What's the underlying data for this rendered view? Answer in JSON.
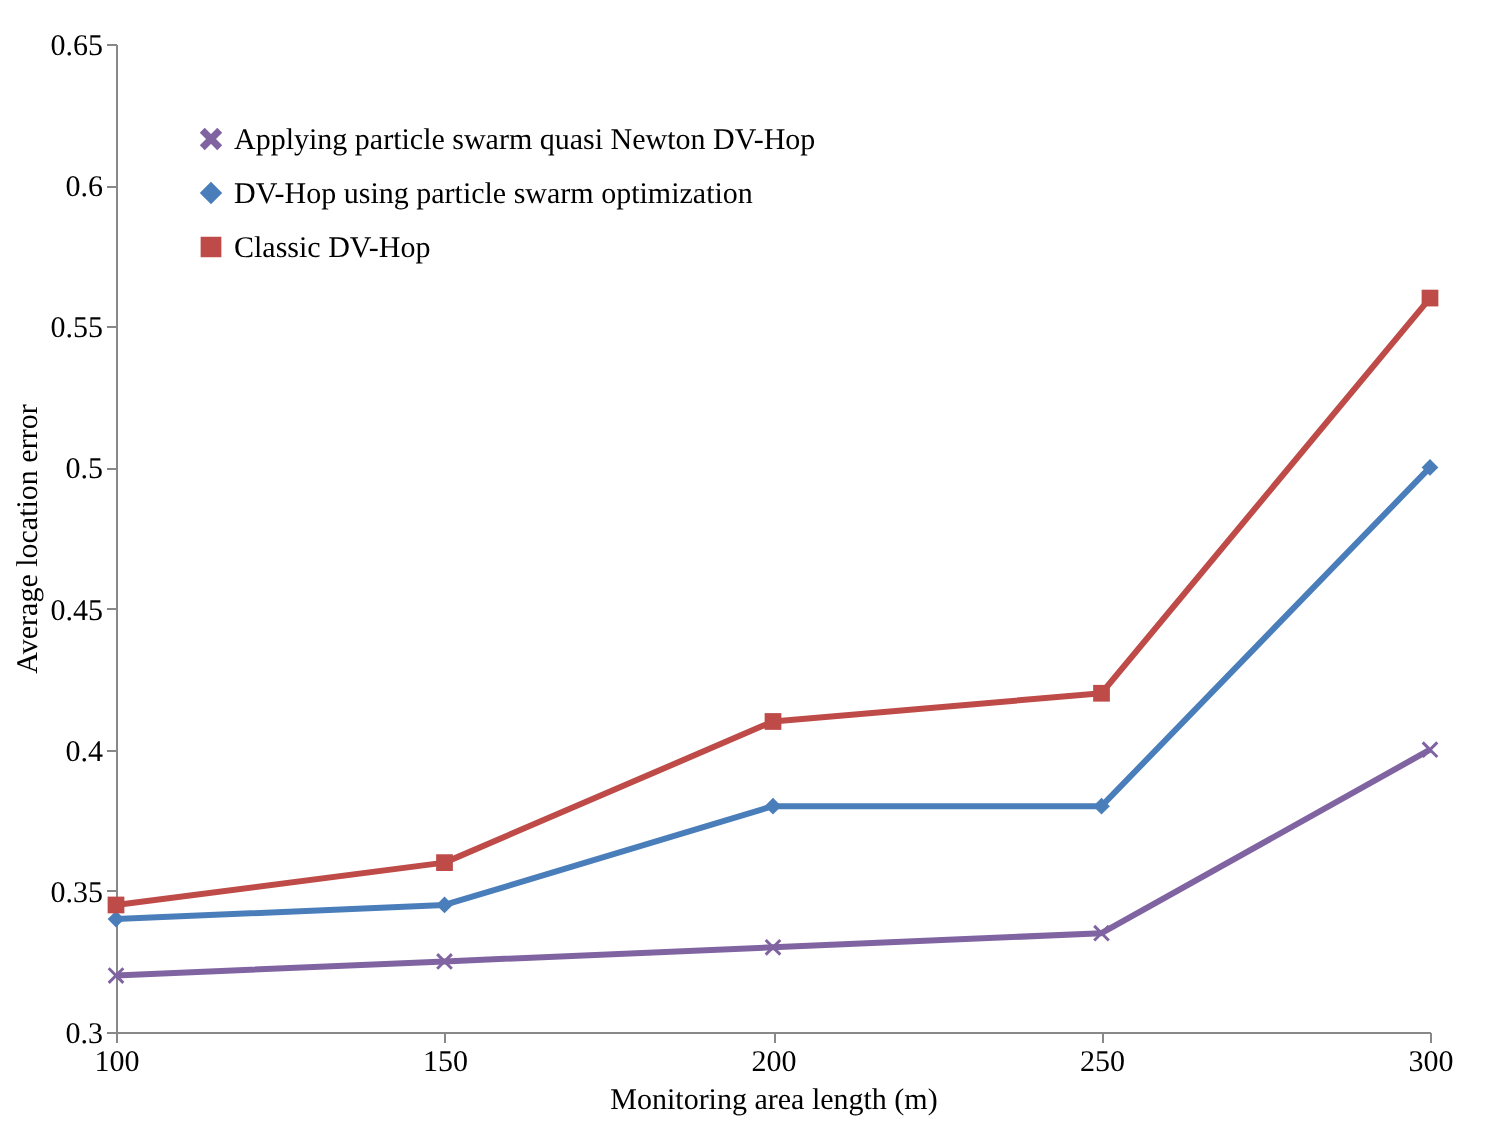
{
  "chart_data": {
    "type": "line",
    "xlabel": "Monitoring area length (m)",
    "ylabel": "Average location error",
    "x": [
      100,
      150,
      200,
      250,
      300
    ],
    "xlim": [
      100,
      300
    ],
    "xticks": [
      100,
      150,
      200,
      250,
      300
    ],
    "ylim": [
      0.3,
      0.65
    ],
    "yticks": [
      0.3,
      0.35,
      0.4,
      0.45,
      0.5,
      0.55,
      0.6,
      0.65
    ],
    "grid": false,
    "legend": "top left",
    "line_style": "solid",
    "series": [
      {
        "name": "Applying particle swarm quasi Newton DV-Hop",
        "color": "#8064a2",
        "marker": "cross",
        "values": [
          0.32,
          0.325,
          0.33,
          0.335,
          0.4
        ]
      },
      {
        "name": "DV-Hop using particle swarm optimization",
        "color": "#4a7ebb",
        "marker": "diamond",
        "values": [
          0.34,
          0.345,
          0.38,
          0.38,
          0.5
        ]
      },
      {
        "name": "Classic DV-Hop",
        "color": "#be4b48",
        "marker": "square",
        "values": [
          0.345,
          0.36,
          0.41,
          0.42,
          0.56
        ]
      }
    ]
  }
}
